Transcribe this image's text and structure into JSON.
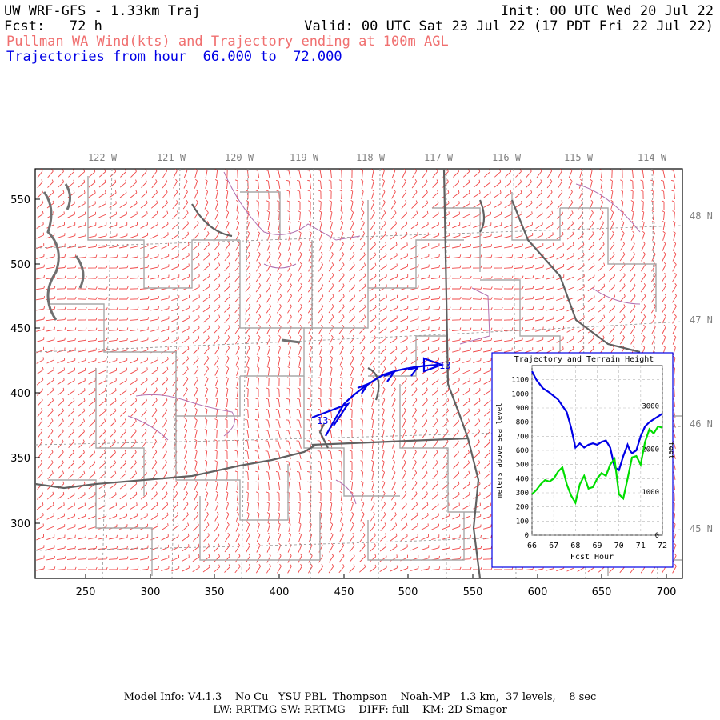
{
  "header": {
    "model_title": "UW WRF-GFS - 1.33km Traj",
    "init": "Init: 00 UTC Wed 20 Jul 22",
    "fcst": "Fcst:   72 h",
    "valid": "Valid: 00 UTC Sat 23 Jul 22 (17 PDT Fri 22 Jul 22)",
    "product": "Pullman WA Wind(kts) and Trajectory ending at 100m AGL",
    "traj_hours": "Trajectories from hour  66.000 to  72.000"
  },
  "colors": {
    "title": "#000000",
    "product": "#f07070",
    "traj_hours": "#0000e6",
    "wind_barbs": "#f04848",
    "state_borders": "#606060",
    "county_lines": "#a8a8a8",
    "rivers": "#b070b0",
    "trajectory": "#0000e6",
    "terrain": "#00dd00"
  },
  "map": {
    "top_longitudes": [
      "122 W",
      "121 W",
      "120 W",
      "119 W",
      "118 W",
      "117 W",
      "116 W",
      "115 W",
      "114 W"
    ],
    "right_latitudes": [
      "48 N",
      "47 N",
      "46 N",
      "45 N"
    ],
    "left_ticks": [
      "550",
      "500",
      "450",
      "400",
      "350",
      "300"
    ],
    "bottom_ticks": [
      "250",
      "300",
      "350",
      "400",
      "450",
      "500",
      "550",
      "600",
      "650",
      "700"
    ],
    "trajectory_label_start": "13",
    "trajectory_label_end": "13"
  },
  "inset": {
    "title": "Trajectory and Terrain Height",
    "ylabel_left": "meters above sea level",
    "ylabel_right": "feet",
    "xlabel": "Fcst Hour",
    "x_ticks": [
      "66",
      "67",
      "68",
      "69",
      "70",
      "71",
      "72"
    ],
    "y_ticks_m": [
      "1100",
      "1000",
      "900",
      "800",
      "700",
      "600",
      "500",
      "400",
      "300",
      "200",
      "100",
      "0"
    ],
    "y_ticks_ft": [
      "3000",
      "2000",
      "1000",
      "0"
    ]
  },
  "chart_data": {
    "type": "line",
    "title": "Trajectory and Terrain Height",
    "xlabel": "Fcst Hour",
    "ylabel": "meters above sea level",
    "xlim": [
      66,
      72
    ],
    "ylim": [
      0,
      1200
    ],
    "grid": true,
    "series": [
      {
        "color": "#0000e6",
        "x": [
          66.0,
          66.2,
          66.5,
          66.8,
          67.2,
          67.6,
          67.8,
          68.0,
          68.2,
          68.4,
          68.6,
          68.8,
          69.0,
          69.2,
          69.4,
          69.6,
          69.8,
          70.0,
          70.2,
          70.4,
          70.5,
          70.6,
          70.8,
          71.0,
          71.2,
          71.4,
          71.6,
          71.8,
          72.0
        ],
        "values": [
          1160,
          1100,
          1040,
          1010,
          960,
          870,
          760,
          620,
          650,
          620,
          640,
          650,
          640,
          660,
          670,
          620,
          480,
          460,
          560,
          640,
          600,
          580,
          600,
          700,
          770,
          800,
          820,
          840,
          860
        ]
      },
      {
        "color": "#00dd00",
        "x": [
          66.0,
          66.2,
          66.4,
          66.6,
          66.8,
          67.0,
          67.2,
          67.4,
          67.6,
          67.8,
          68.0,
          68.2,
          68.4,
          68.6,
          68.8,
          69.0,
          69.2,
          69.4,
          69.6,
          69.8,
          70.0,
          70.2,
          70.4,
          70.6,
          70.8,
          71.0,
          71.2,
          71.4,
          71.6,
          71.8,
          72.0
        ],
        "values": [
          290,
          320,
          360,
          390,
          380,
          400,
          450,
          480,
          360,
          280,
          230,
          360,
          420,
          330,
          340,
          400,
          440,
          420,
          500,
          540,
          290,
          260,
          400,
          550,
          560,
          500,
          660,
          750,
          720,
          770,
          760
        ]
      }
    ]
  },
  "footer": {
    "line1": "Model Info: V4.1.3    No Cu   YSU PBL  Thompson    Noah-MP   1.3 km,  37 levels,    8 sec",
    "line2": "LW: RRTMG SW: RRTMG    DIFF: full    KM: 2D Smagor"
  }
}
